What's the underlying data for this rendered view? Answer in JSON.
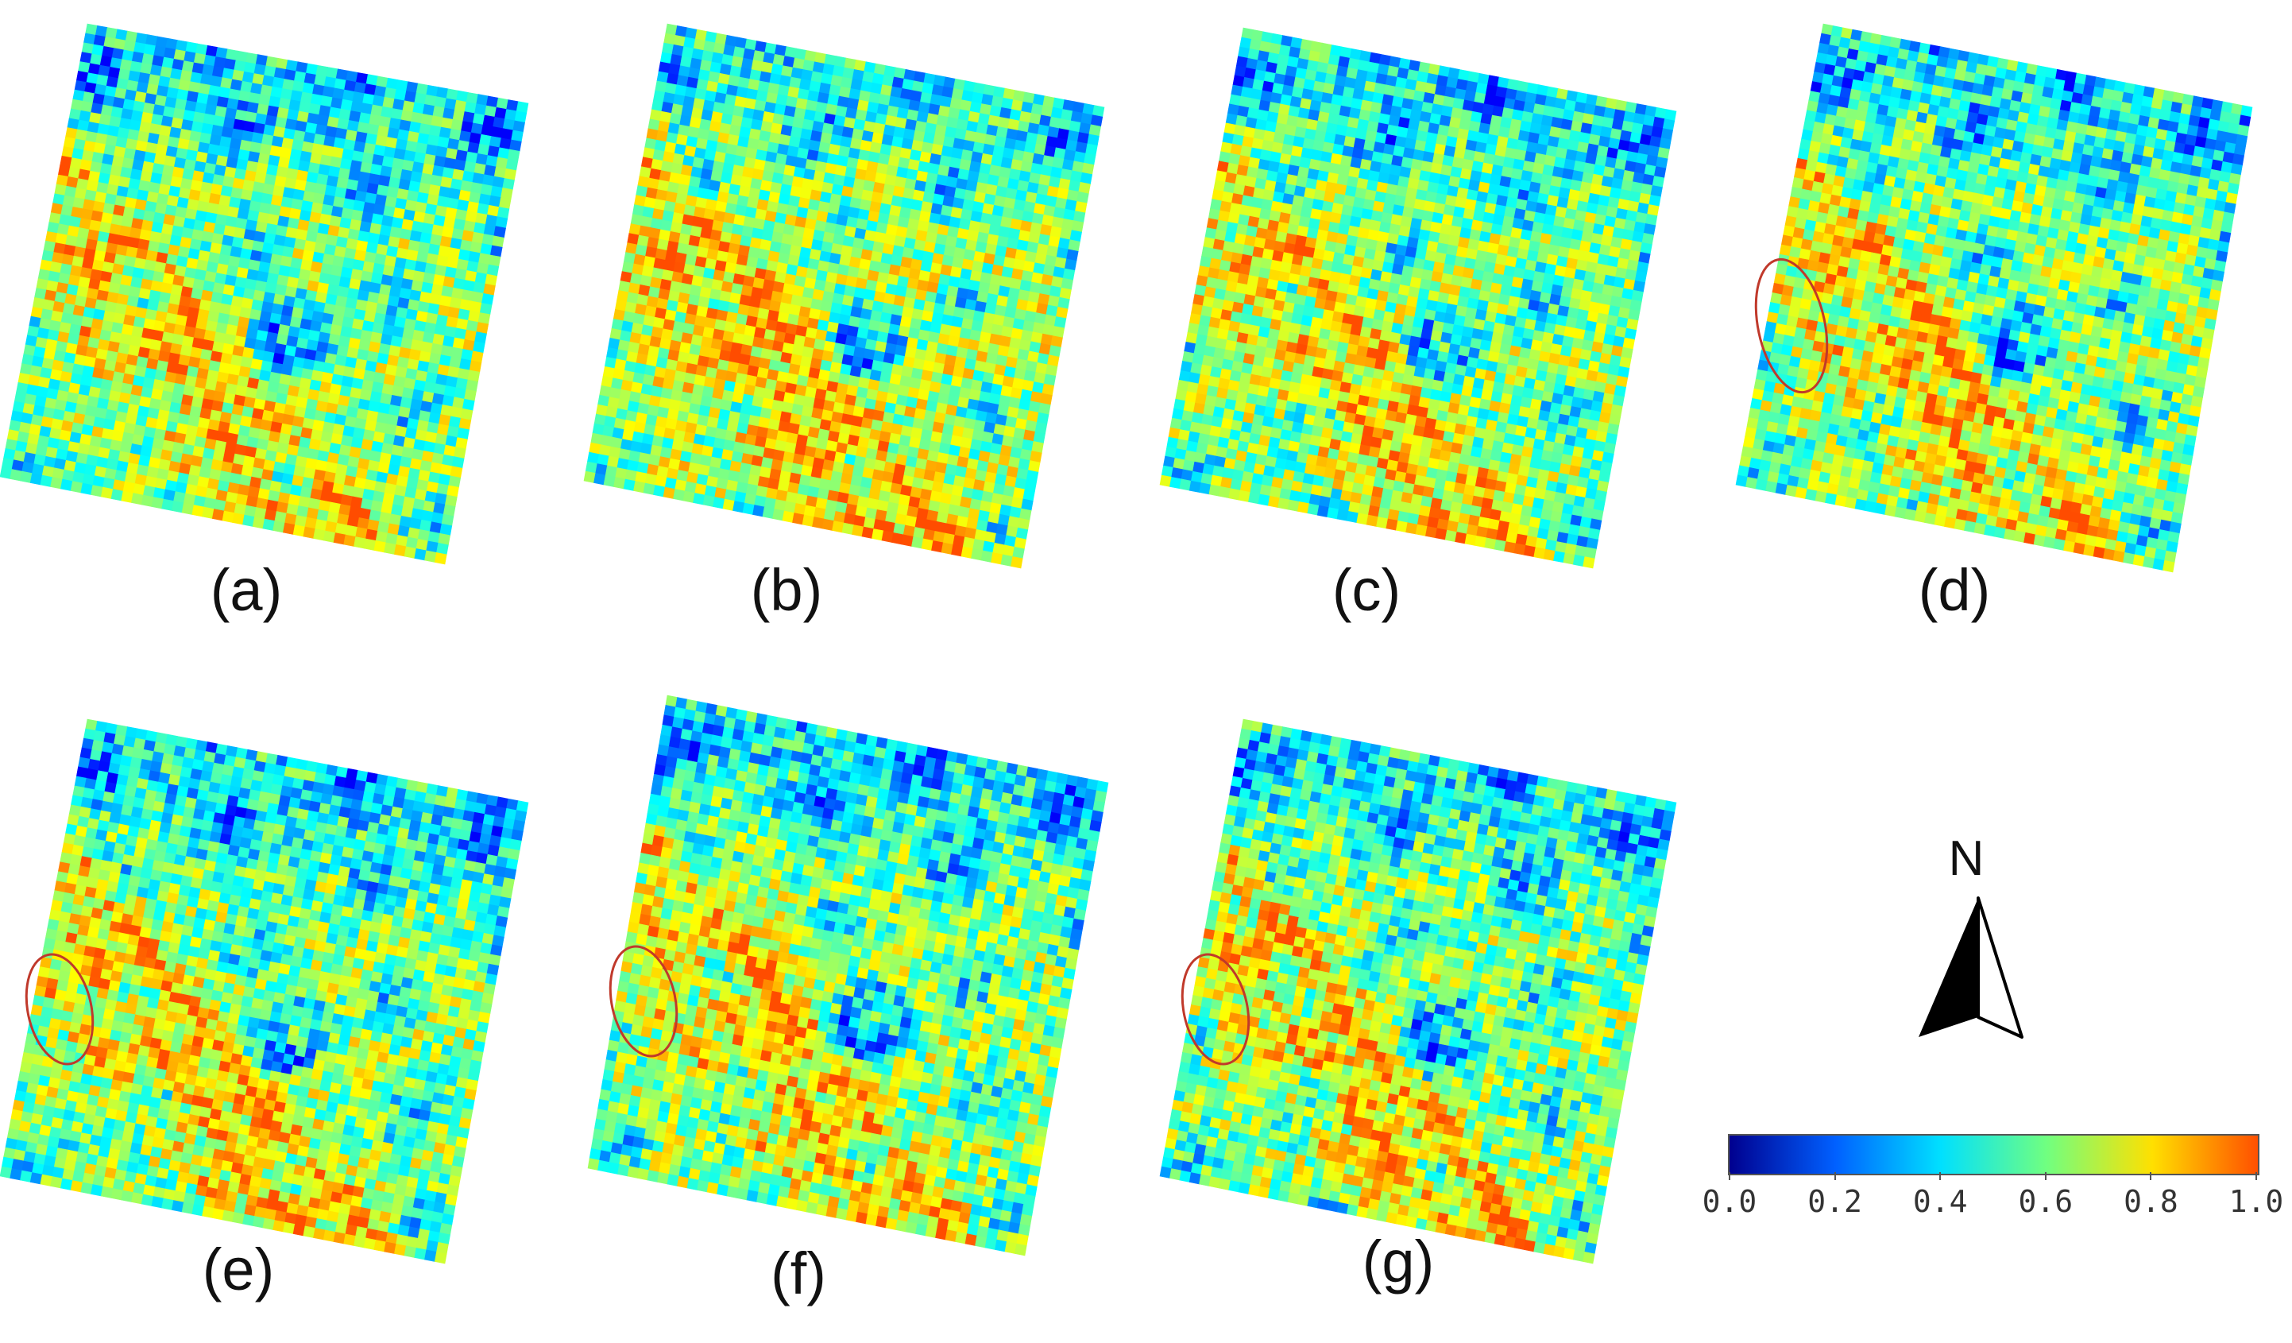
{
  "panels": [
    {
      "label": "(a)",
      "highlight": false
    },
    {
      "label": "(b)",
      "highlight": false
    },
    {
      "label": "(c)",
      "highlight": false
    },
    {
      "label": "(d)",
      "highlight": true
    },
    {
      "label": "(e)",
      "highlight": true
    },
    {
      "label": "(f)",
      "highlight": true
    },
    {
      "label": "(g)",
      "highlight": true
    }
  ],
  "north_arrow": {
    "letter": "N"
  },
  "colorbar": {
    "ticks": [
      "0.0",
      "0.2",
      "0.4",
      "0.6",
      "0.8",
      "1.0"
    ],
    "range": [
      0.0,
      1.0
    ],
    "colormap": "jet",
    "colors": [
      "#00008f",
      "#0060ff",
      "#00e0ff",
      "#70ff80",
      "#ffe000",
      "#ff5000"
    ]
  },
  "highlight_color": "#c0392b"
}
